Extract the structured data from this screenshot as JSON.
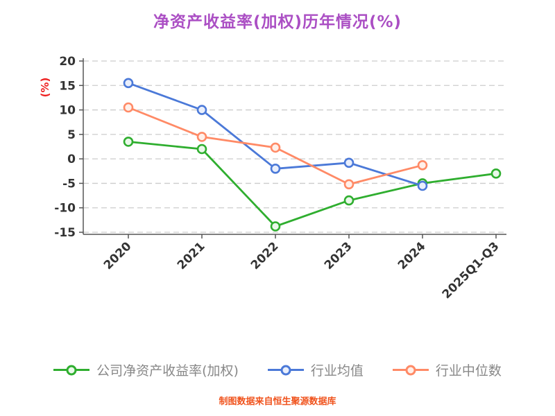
{
  "title": "净资产收益率(加权)历年情况(%)",
  "footer": "制图数据来自恒生聚源数据库",
  "colors": {
    "title": "#ab4fc4",
    "ylabel": "#ee2020",
    "tick": "#333333",
    "axis": "#555555",
    "grid": "#cccccc",
    "legend_text": "#888888",
    "footer": "#f0541e",
    "background": "#ffffff"
  },
  "chart_data": {
    "type": "line",
    "title": "净资产收益率(加权)历年情况(%)",
    "xlabel": "",
    "ylabel": "(%)",
    "ylim": [
      -15,
      20
    ],
    "yticks": [
      20,
      15,
      10,
      5,
      0,
      -5,
      -10,
      -15
    ],
    "grid": "horizontal-dashed",
    "legend_position": "bottom",
    "categories": [
      "2020",
      "2021",
      "2022",
      "2023",
      "2024",
      "2025Q1-Q3"
    ],
    "series": [
      {
        "name": "公司净资产收益率(加权)",
        "color": "#2fae2f",
        "marker_fill": "#eaf8ea",
        "values": [
          3.5,
          2.0,
          -13.8,
          -8.5,
          -5.0,
          -3.0
        ]
      },
      {
        "name": "行业均值",
        "color": "#4b79d8",
        "marker_fill": "#eaeffb",
        "values": [
          15.5,
          10.0,
          -2.0,
          -0.8,
          -5.5,
          null
        ]
      },
      {
        "name": "行业中位数",
        "color": "#ff8a66",
        "marker_fill": "#fff0ea",
        "values": [
          10.5,
          4.5,
          2.3,
          -5.2,
          -1.3,
          null
        ]
      }
    ]
  }
}
